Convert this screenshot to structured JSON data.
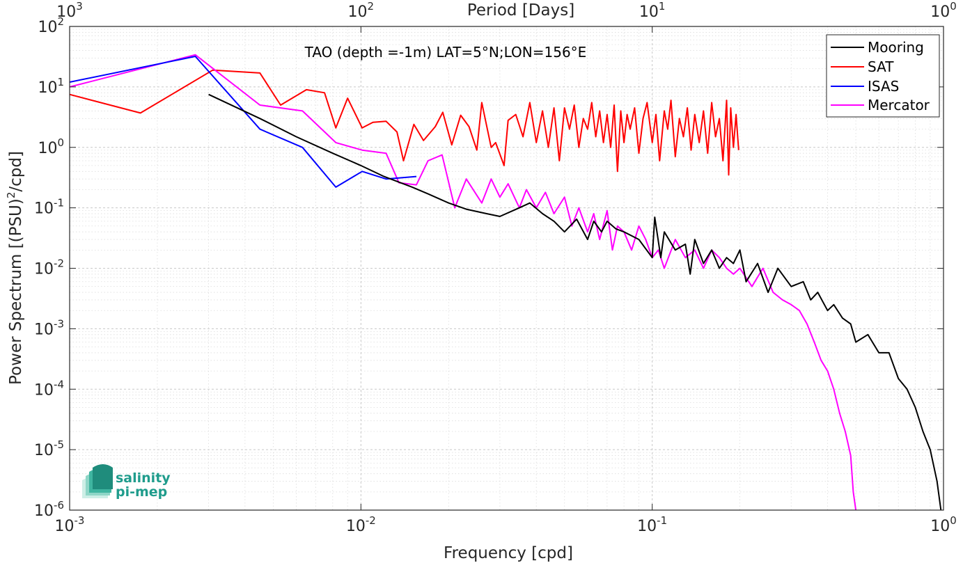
{
  "chart_data": {
    "type": "line",
    "title": "TAO (depth =-1m) LAT=5°N;LON=156°E",
    "xlabel": "Frequency [cpd]",
    "ylabel": "Power Spectrum [(PSU)",
    "ylabel_sup": "2",
    "ylabel_tail": "/cpd]",
    "top_xlabel": "Period [Days]",
    "x_scale": "log",
    "y_scale": "log",
    "xlim": [
      0.001,
      1
    ],
    "ylim": [
      1e-06,
      100
    ],
    "grid": true,
    "minor_grid": true,
    "legend_position": "top-right",
    "x_ticks": [
      {
        "value": 0.001,
        "base": "10",
        "exp": "-3"
      },
      {
        "value": 0.01,
        "base": "10",
        "exp": "-2"
      },
      {
        "value": 0.1,
        "base": "10",
        "exp": "-1"
      },
      {
        "value": 1,
        "base": "10",
        "exp": "0"
      }
    ],
    "top_x_ticks": [
      {
        "freq": 0.001,
        "base": "10",
        "exp": "3"
      },
      {
        "freq": 0.01,
        "base": "10",
        "exp": "2"
      },
      {
        "freq": 0.1,
        "base": "10",
        "exp": "1"
      },
      {
        "freq": 1,
        "base": "10",
        "exp": "0"
      }
    ],
    "y_ticks": [
      {
        "value": 1e-06,
        "base": "10",
        "exp": "-6"
      },
      {
        "value": 1e-05,
        "base": "10",
        "exp": "-5"
      },
      {
        "value": 0.0001,
        "base": "10",
        "exp": "-4"
      },
      {
        "value": 0.001,
        "base": "10",
        "exp": "-3"
      },
      {
        "value": 0.01,
        "base": "10",
        "exp": "-2"
      },
      {
        "value": 0.1,
        "base": "10",
        "exp": "-1"
      },
      {
        "value": 1,
        "base": "10",
        "exp": "0"
      },
      {
        "value": 10,
        "base": "10",
        "exp": "1"
      },
      {
        "value": 100,
        "base": "10",
        "exp": "2"
      }
    ],
    "series": [
      {
        "name": "Mooring",
        "color": "#000000",
        "x": [
          0.003,
          0.0045,
          0.006,
          0.008,
          0.01,
          0.012,
          0.015,
          0.017,
          0.02,
          0.023,
          0.027,
          0.03,
          0.035,
          0.038,
          0.042,
          0.046,
          0.05,
          0.055,
          0.06,
          0.063,
          0.067,
          0.07,
          0.075,
          0.08,
          0.09,
          0.1,
          0.102,
          0.107,
          0.11,
          0.12,
          0.13,
          0.135,
          0.14,
          0.15,
          0.16,
          0.17,
          0.18,
          0.19,
          0.2,
          0.21,
          0.23,
          0.25,
          0.27,
          0.3,
          0.33,
          0.35,
          0.37,
          0.4,
          0.42,
          0.45,
          0.48,
          0.5,
          0.55,
          0.6,
          0.65,
          0.7,
          0.75,
          0.8,
          0.85,
          0.9,
          0.95,
          0.98
        ],
        "y": [
          7.5,
          3.0,
          1.5,
          0.8,
          0.5,
          0.33,
          0.22,
          0.17,
          0.12,
          0.095,
          0.08,
          0.072,
          0.1,
          0.12,
          0.08,
          0.06,
          0.04,
          0.065,
          0.03,
          0.06,
          0.04,
          0.06,
          0.045,
          0.04,
          0.03,
          0.015,
          0.07,
          0.015,
          0.04,
          0.02,
          0.025,
          0.008,
          0.03,
          0.012,
          0.02,
          0.01,
          0.015,
          0.012,
          0.02,
          0.006,
          0.012,
          0.004,
          0.01,
          0.005,
          0.006,
          0.003,
          0.004,
          0.002,
          0.0025,
          0.0015,
          0.0012,
          0.0006,
          0.0008,
          0.0004,
          0.0004,
          0.00015,
          0.0001,
          5e-05,
          2e-05,
          1e-05,
          3e-06,
          1e-06
        ]
      },
      {
        "name": "SAT",
        "color": "#ff0000",
        "x": [
          0.001,
          0.00175,
          0.0031,
          0.0045,
          0.0053,
          0.0065,
          0.0075,
          0.0082,
          0.009,
          0.0101,
          0.011,
          0.0122,
          0.0133,
          0.014,
          0.0152,
          0.0164,
          0.018,
          0.0191,
          0.0205,
          0.022,
          0.0235,
          0.025,
          0.026,
          0.028,
          0.029,
          0.031,
          0.032,
          0.034,
          0.036,
          0.038,
          0.04,
          0.042,
          0.044,
          0.046,
          0.048,
          0.05,
          0.052,
          0.054,
          0.056,
          0.058,
          0.06,
          0.062,
          0.064,
          0.066,
          0.068,
          0.07,
          0.072,
          0.074,
          0.076,
          0.078,
          0.08,
          0.082,
          0.084,
          0.087,
          0.09,
          0.093,
          0.096,
          0.1,
          0.103,
          0.106,
          0.11,
          0.113,
          0.116,
          0.12,
          0.124,
          0.128,
          0.132,
          0.136,
          0.14,
          0.145,
          0.15,
          0.155,
          0.16,
          0.165,
          0.17,
          0.175,
          0.18,
          0.183,
          0.186,
          0.19,
          0.194,
          0.198
        ],
        "y": [
          7.5,
          3.7,
          19.0,
          17.0,
          5.0,
          9.0,
          8.0,
          2.1,
          6.5,
          2.1,
          2.6,
          2.7,
          1.8,
          0.6,
          2.4,
          1.3,
          2.2,
          3.8,
          1.1,
          3.4,
          2.2,
          0.9,
          5.5,
          1.0,
          1.2,
          0.5,
          2.8,
          3.5,
          1.5,
          5.5,
          1.2,
          4.0,
          1.0,
          4.5,
          0.6,
          4.5,
          2.0,
          5.0,
          1.0,
          3.0,
          2.0,
          5.5,
          1.5,
          4.0,
          1.2,
          3.5,
          1.0,
          5.0,
          0.4,
          4.0,
          1.2,
          3.5,
          2.0,
          4.5,
          0.8,
          3.0,
          5.5,
          1.2,
          3.5,
          0.6,
          4.0,
          2.0,
          6.0,
          0.7,
          3.0,
          1.5,
          4.5,
          0.9,
          3.5,
          1.2,
          4.0,
          0.8,
          5.5,
          1.5,
          3.0,
          0.6,
          6.0,
          0.35,
          4.5,
          1.0,
          3.5,
          0.9
        ]
      },
      {
        "name": "ISAS",
        "color": "#0000ff",
        "x": [
          0.001,
          0.0027,
          0.0045,
          0.0063,
          0.0082,
          0.0101,
          0.0122,
          0.0155
        ],
        "y": [
          12.0,
          32.0,
          2.0,
          1.0,
          0.22,
          0.4,
          0.3,
          0.33
        ]
      },
      {
        "name": "Mercator",
        "color": "#ff00ff",
        "x": [
          0.001,
          0.0027,
          0.0045,
          0.0063,
          0.0082,
          0.0101,
          0.0122,
          0.0135,
          0.0155,
          0.017,
          0.019,
          0.021,
          0.023,
          0.026,
          0.028,
          0.03,
          0.032,
          0.035,
          0.037,
          0.04,
          0.043,
          0.046,
          0.05,
          0.053,
          0.056,
          0.06,
          0.063,
          0.066,
          0.07,
          0.073,
          0.076,
          0.08,
          0.085,
          0.09,
          0.095,
          0.1,
          0.105,
          0.11,
          0.12,
          0.13,
          0.14,
          0.15,
          0.16,
          0.17,
          0.18,
          0.19,
          0.2,
          0.22,
          0.24,
          0.26,
          0.28,
          0.3,
          0.32,
          0.34,
          0.36,
          0.38,
          0.4,
          0.42,
          0.44,
          0.46,
          0.48,
          0.49,
          0.5
        ],
        "y": [
          10.0,
          34.0,
          5.0,
          4.0,
          1.2,
          0.9,
          0.8,
          0.26,
          0.24,
          0.6,
          0.75,
          0.1,
          0.3,
          0.12,
          0.3,
          0.15,
          0.25,
          0.1,
          0.2,
          0.1,
          0.18,
          0.08,
          0.15,
          0.05,
          0.1,
          0.04,
          0.08,
          0.03,
          0.09,
          0.02,
          0.05,
          0.04,
          0.02,
          0.05,
          0.03,
          0.015,
          0.02,
          0.01,
          0.03,
          0.015,
          0.02,
          0.01,
          0.02,
          0.015,
          0.01,
          0.008,
          0.01,
          0.005,
          0.01,
          0.004,
          0.003,
          0.0025,
          0.002,
          0.0012,
          0.0006,
          0.0003,
          0.0002,
          0.0001,
          4e-05,
          2e-05,
          8e-06,
          2e-06,
          1e-06
        ]
      }
    ]
  },
  "logo": {
    "line1": "salinity",
    "line2": "pi-mep"
  }
}
